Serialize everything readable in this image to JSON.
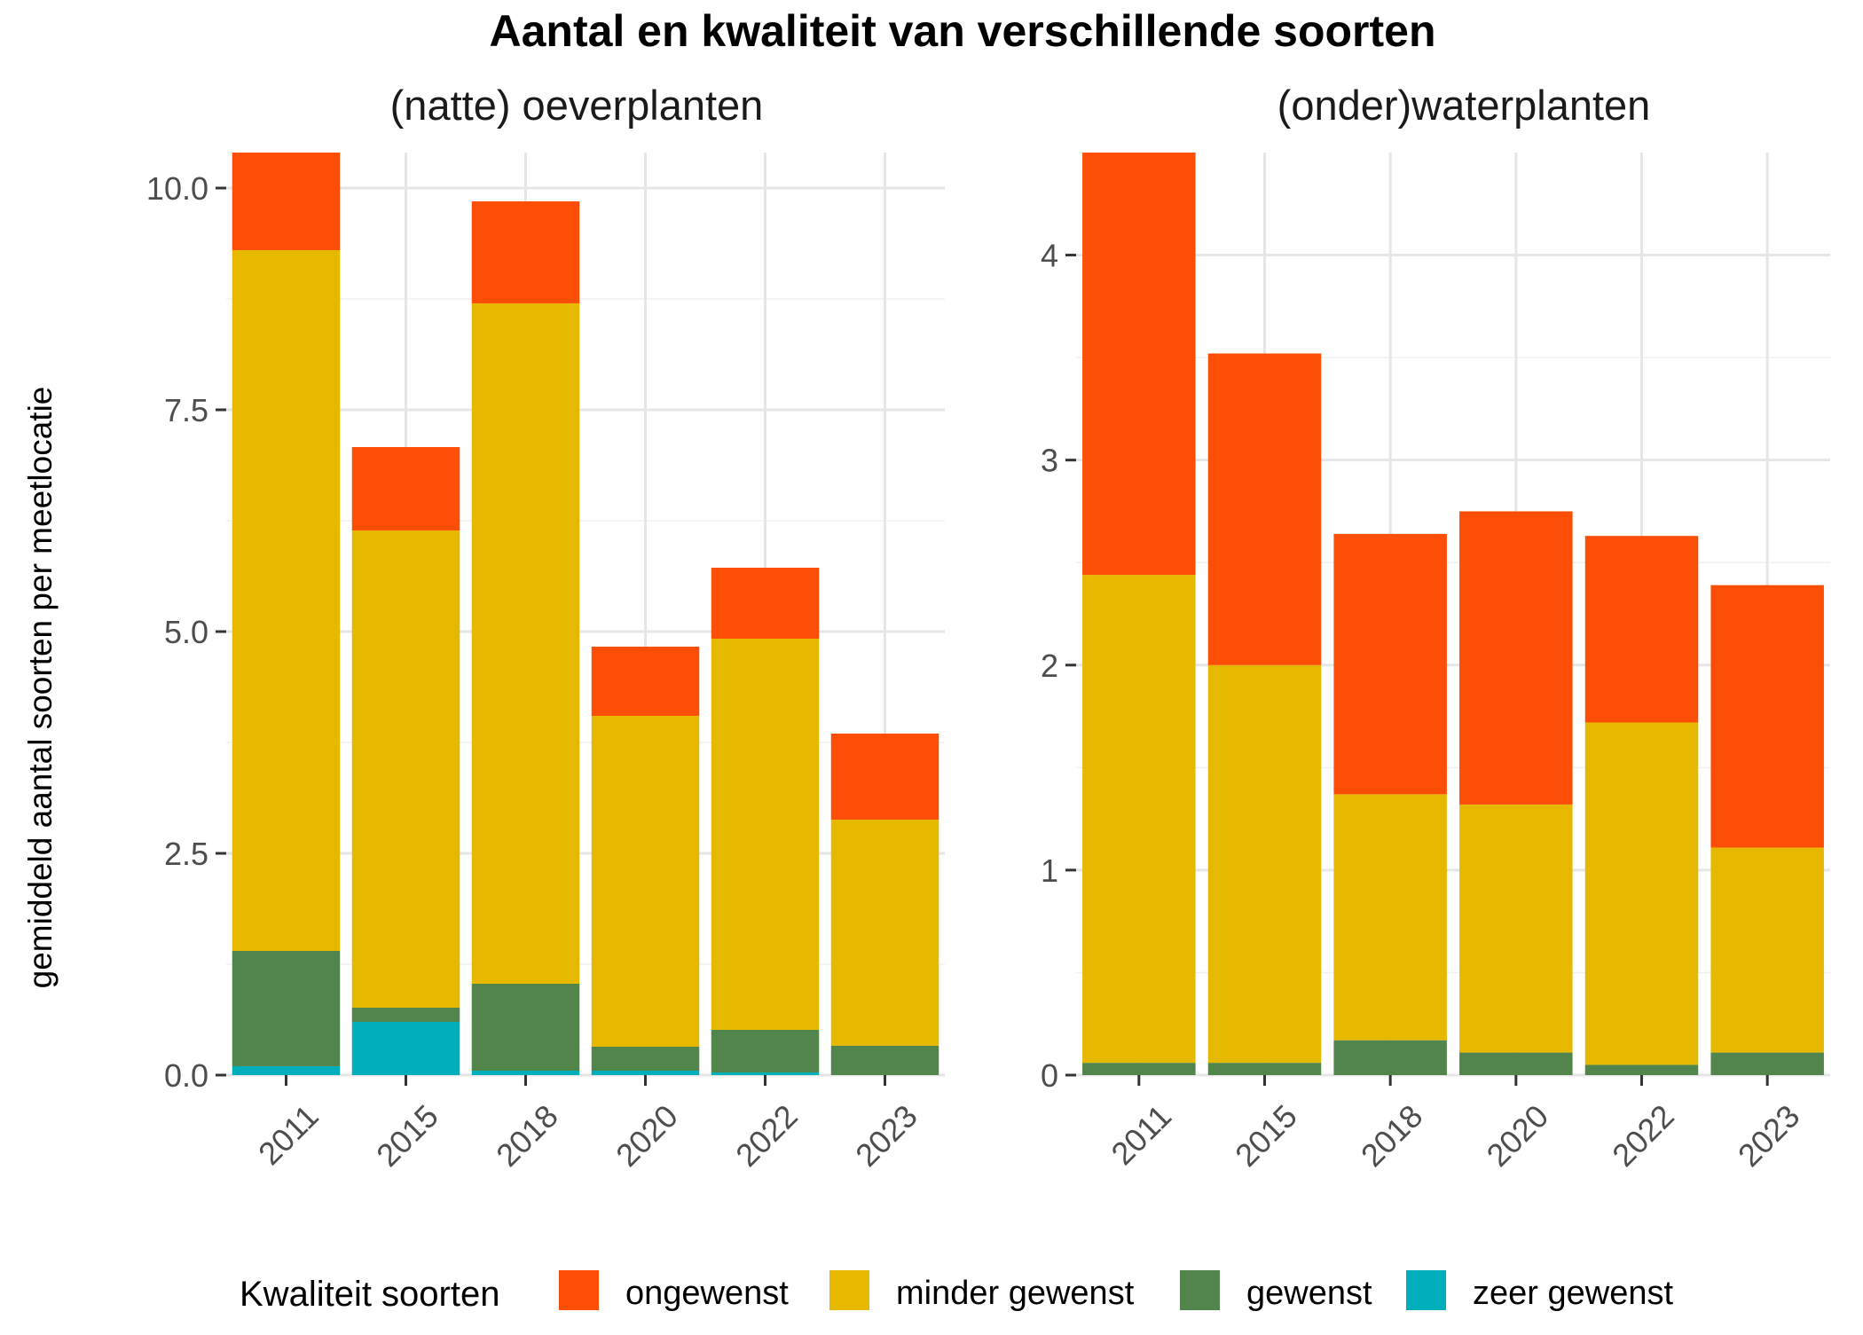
{
  "title": "Aantal en kwaliteit van verschillende soorten",
  "ylabel": "gemiddeld aantal soorten per meetlocatie",
  "legend": {
    "title": "Kwaliteit soorten",
    "position": "bottom"
  },
  "chart_data": [
    {
      "type": "bar",
      "stacked": true,
      "title": "(natte) oeverplanten",
      "ylabel": "gemiddeld aantal soorten per meetlocatie",
      "categories": [
        "2011",
        "2015",
        "2018",
        "2020",
        "2022",
        "2023"
      ],
      "ylim": [
        0,
        10.4
      ],
      "yticks": [
        0,
        2.5,
        5,
        7.5,
        10
      ],
      "ytick_labels": [
        "0.0",
        "2.5",
        "5.0",
        "7.5",
        "10.0"
      ],
      "grid": true,
      "series": [
        {
          "name": "zeer gewenst",
          "color": "#00AFBB",
          "values": [
            0.1,
            0.6,
            0.05,
            0.05,
            0.03,
            0.0
          ]
        },
        {
          "name": "gewenst",
          "color": "#52854C",
          "values": [
            1.3,
            0.16,
            0.98,
            0.27,
            0.48,
            0.33
          ]
        },
        {
          "name": "minder gewenst",
          "color": "#E7B800",
          "values": [
            7.9,
            5.38,
            7.67,
            3.73,
            4.41,
            2.55
          ]
        },
        {
          "name": "ongewenst",
          "color": "#FC4E07",
          "values": [
            1.1,
            0.94,
            1.15,
            0.78,
            0.8,
            0.97
          ]
        }
      ]
    },
    {
      "type": "bar",
      "stacked": true,
      "title": "(onder)waterplanten",
      "categories": [
        "2011",
        "2015",
        "2018",
        "2020",
        "2022",
        "2023"
      ],
      "ylim": [
        0,
        4.5
      ],
      "yticks": [
        0,
        1,
        2,
        3,
        4
      ],
      "ytick_labels": [
        "0",
        "1",
        "2",
        "3",
        "4"
      ],
      "grid": true,
      "series": [
        {
          "name": "zeer gewenst",
          "color": "#00AFBB",
          "values": [
            0,
            0,
            0,
            0,
            0,
            0
          ]
        },
        {
          "name": "gewenst",
          "color": "#52854C",
          "values": [
            0.06,
            0.06,
            0.17,
            0.11,
            0.05,
            0.11
          ]
        },
        {
          "name": "minder gewenst",
          "color": "#E7B800",
          "values": [
            2.38,
            1.94,
            1.2,
            1.21,
            1.67,
            1.0
          ]
        },
        {
          "name": "ongewenst",
          "color": "#FC4E07",
          "values": [
            2.06,
            1.52,
            1.27,
            1.43,
            0.91,
            1.28
          ]
        }
      ]
    }
  ],
  "legend_order": [
    "ongewenst",
    "minder gewenst",
    "gewenst",
    "zeer gewenst"
  ]
}
